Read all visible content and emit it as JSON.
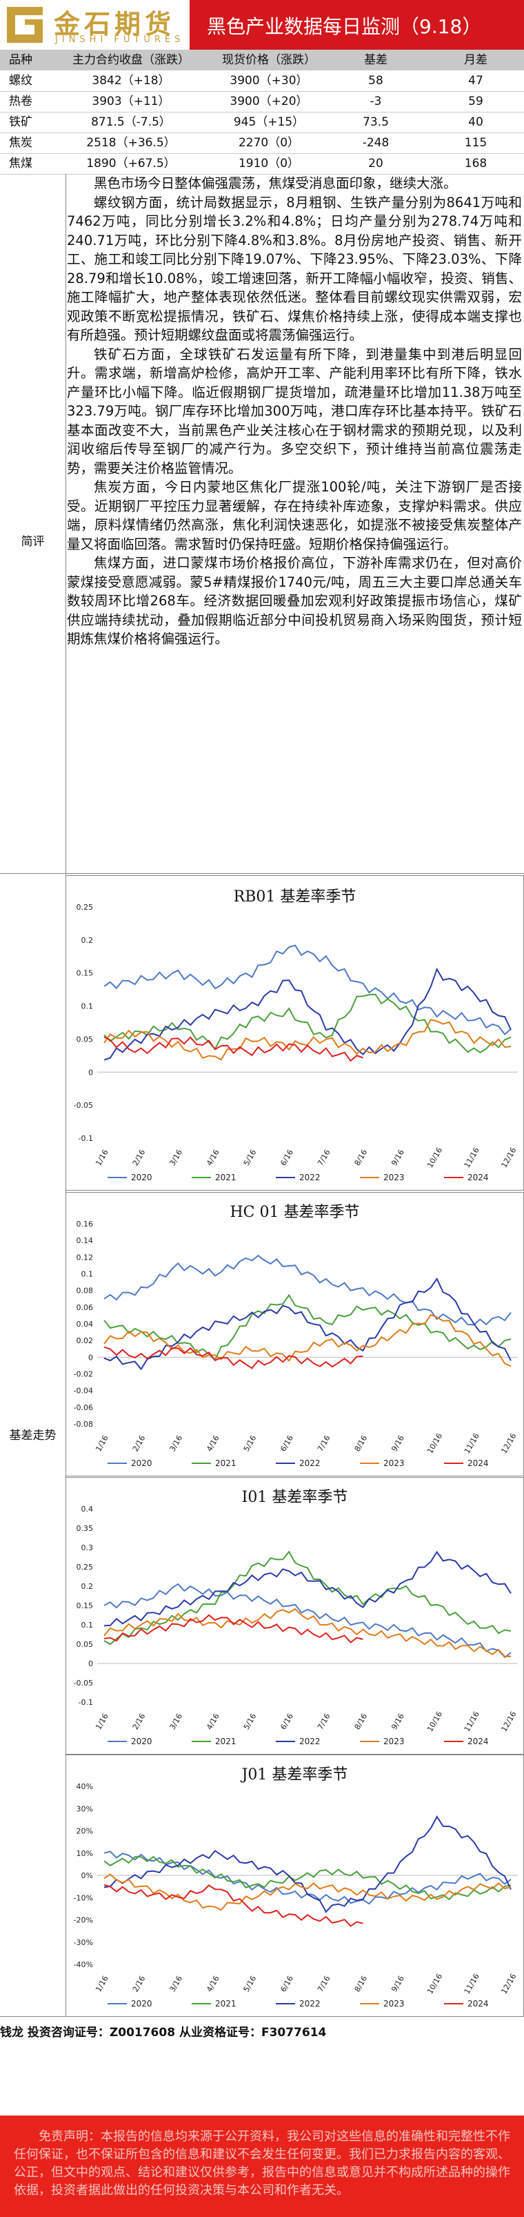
{
  "header": {
    "logo_cn": "金石期货",
    "logo_en": "JINSHI FUTURES",
    "title": "黑色产业数据每日监测（9.18）"
  },
  "table": {
    "columns": [
      "品种",
      "主力合约收盘（涨跌）",
      "现货价格（涨跌）",
      "基差",
      "月差"
    ],
    "rows": [
      [
        "螺纹",
        "3842（+18）",
        "3900（+30）",
        "58",
        "47"
      ],
      [
        "热卷",
        "3903（+11）",
        "3900（+20）",
        "-3",
        "59"
      ],
      [
        "铁矿",
        "871.5（-7.5）",
        "945（+15）",
        "73.5",
        "40"
      ],
      [
        "焦炭",
        "2518（+36.5）",
        "2270（0）",
        "-248",
        "115"
      ],
      [
        "焦煤",
        "1890（+67.5）",
        "1910（0）",
        "20",
        "168"
      ]
    ]
  },
  "comment": {
    "label": "简评",
    "paragraphs": [
      "黑色市场今日整体偏强震荡，焦煤受消息面印象，继续大涨。",
      "螺纹钢方面，统计局数据显示，8月粗钢、生铁产量分别为8641万吨和7462万吨，同比分别增长3.2%和4.8%；日均产量分别为278.74万吨和240.71万吨，环比分别下降4.8%和3.8%。8月份房地产投资、销售、新开工、施工和竣工同比分别下降19.07%、下降23.95%、下降23.03%、下降28.79和增长10.08%，竣工增速回落，新开工降幅小幅收窄，投资、销售、施工降幅扩大，地产整体表现依然低迷。整体看目前螺纹现实供需双弱，宏观政策不断宽松提振情况，铁矿石、煤焦价格持续上涨，使得成本端支撑也有所趋强。预计短期螺纹盘面或将震荡偏强运行。",
      "铁矿石方面，全球铁矿石发运量有所下降，到港量集中到港后明显回升。需求端，新增高炉检修，高炉开工率、产能利用率环比有所下降，铁水产量环比小幅下降。临近假期钢厂提货增加，疏港量环比增加11.38万吨至323.79万吨。钢厂库存环比增加300万吨，港口库存环比基本持平。铁矿石基本面改变不大，当前黑色产业关注核心在于钢材需求的预期兑现，以及利润收缩后传导至钢厂的减产行为。多空交织下，预计维持当前高位震荡走势，需要关注价格监管情况。",
      "焦炭方面，今日内蒙地区焦化厂提涨100轮/吨，关注下游钢厂是否接受。近期钢厂平控压力显著缓解，存在持续补库迹象，支撑炉料需求。供应端，原料煤情绪仍然高涨，焦化利润快速恶化，如提涨不被接受焦炭整体产量又将面临回落。需求暂时仍保持旺盛。短期价格保持偏强运行。",
      "焦煤方面，进口蒙煤市场价格报价高位，下游补库需求仍在，但对高价蒙煤接受意愿减弱。蒙5#精煤报价1740元/吨，周五三大主要口岸总通关车数较周环比增268车。经济数据回暖叠加宏观利好政策提振市场信心，煤矿供应端持续扰动，叠加假期临近部分中间投机贸易商入场采购囤货，预计短期炼焦煤价格将偏强运行。"
    ]
  },
  "basis": {
    "label": "基差走势"
  },
  "x_ticks": [
    "1/16",
    "2/16",
    "3/16",
    "4/16",
    "5/16",
    "6/16",
    "7/16",
    "8/16",
    "9/16",
    "10/16",
    "11/16",
    "12/16"
  ],
  "colors": {
    "2020": "#4e79c6",
    "2021": "#4aa03c",
    "2022": "#2b3aa8",
    "2023": "#e07b1a",
    "2024": "#e02020",
    "brand_red": "#d4161d",
    "gold": "#c8a03b"
  },
  "chart_data": [
    {
      "type": "line",
      "title": "RB01 基差率季节",
      "ylim": [
        -0.1,
        0.25
      ],
      "yticks": [
        "0.25",
        "0.2",
        "0.15",
        "0.1",
        "0.05",
        "0",
        "-0.05",
        "-0.1"
      ],
      "series": [
        {
          "name": "2020",
          "values": [
            0.13,
            0.14,
            0.15,
            0.13,
            0.15,
            0.19,
            0.17,
            0.13,
            0.11,
            0.09,
            0.08,
            0.06
          ]
        },
        {
          "name": "2021",
          "values": [
            0.05,
            0.06,
            0.07,
            0.04,
            0.08,
            0.09,
            0.05,
            0.12,
            0.1,
            0.06,
            0.03,
            0.05
          ]
        },
        {
          "name": "2022",
          "values": [
            0.02,
            0.05,
            0.07,
            0.09,
            0.1,
            0.14,
            0.07,
            0.03,
            0.04,
            0.15,
            0.12,
            0.07
          ]
        },
        {
          "name": "2023",
          "values": [
            0.05,
            0.06,
            0.04,
            0.02,
            0.05,
            0.04,
            0.05,
            0.03,
            0.04,
            0.08,
            0.05,
            0.04
          ]
        },
        {
          "name": "2024",
          "values": [
            0.05,
            0.03,
            0.05,
            0.04,
            0.03,
            0.04,
            0.03,
            0.02
          ]
        }
      ]
    },
    {
      "type": "line",
      "title": "HC 01 基差率季节",
      "ylim": [
        -0.08,
        0.16
      ],
      "yticks": [
        "0.16",
        "0.14",
        "0.12",
        "0.1",
        "0.08",
        "0.06",
        "0.04",
        "0.02",
        "0",
        "-0.02",
        "-0.04",
        "-0.06",
        "-0.08"
      ],
      "series": [
        {
          "name": "2020",
          "values": [
            0.07,
            0.08,
            0.11,
            0.1,
            0.12,
            0.11,
            0.09,
            0.08,
            0.07,
            0.05,
            0.04,
            0.05
          ]
        },
        {
          "name": "2021",
          "values": [
            0.04,
            0.03,
            0.02,
            0.0,
            0.05,
            0.07,
            0.04,
            0.06,
            0.05,
            0.03,
            0.01,
            0.02
          ]
        },
        {
          "name": "2022",
          "values": [
            0.0,
            -0.01,
            0.02,
            0.04,
            0.05,
            0.06,
            0.03,
            0.01,
            0.06,
            0.09,
            0.04,
            0.0
          ]
        },
        {
          "name": "2023",
          "values": [
            0.02,
            0.03,
            0.01,
            0.0,
            0.01,
            0.0,
            0.02,
            0.01,
            0.03,
            0.05,
            0.02,
            -0.01
          ]
        },
        {
          "name": "2024",
          "values": [
            0.01,
            0.0,
            0.01,
            0.0,
            -0.01,
            0.0,
            -0.01,
            0.0
          ]
        }
      ]
    },
    {
      "type": "line",
      "title": "I01 基差率季节",
      "ylim": [
        -0.1,
        0.4
      ],
      "yticks": [
        "0.4",
        "0.35",
        "0.3",
        "0.25",
        "0.2",
        "0.15",
        "0.1",
        "0.05",
        "0",
        "-0.05",
        "-0.1"
      ],
      "series": [
        {
          "name": "2020",
          "values": [
            0.15,
            0.16,
            0.2,
            0.18,
            0.17,
            0.15,
            0.12,
            0.1,
            0.09,
            0.07,
            0.05,
            0.02
          ]
        },
        {
          "name": "2021",
          "values": [
            0.05,
            0.09,
            0.12,
            0.16,
            0.25,
            0.28,
            0.2,
            0.16,
            0.2,
            0.15,
            0.1,
            0.08
          ]
        },
        {
          "name": "2022",
          "values": [
            0.1,
            0.12,
            0.15,
            0.18,
            0.22,
            0.24,
            0.2,
            0.15,
            0.2,
            0.28,
            0.24,
            0.19
          ]
        },
        {
          "name": "2023",
          "values": [
            0.08,
            0.1,
            0.12,
            0.1,
            0.11,
            0.14,
            0.1,
            0.08,
            0.07,
            0.05,
            0.04,
            0.02
          ]
        },
        {
          "name": "2024",
          "values": [
            0.06,
            0.08,
            0.1,
            0.12,
            0.1,
            0.09,
            0.07,
            0.06
          ]
        }
      ]
    },
    {
      "type": "line",
      "title": "J01 基差率季节",
      "ylim": [
        -0.4,
        0.4
      ],
      "yticks": [
        "40%",
        "30%",
        "20%",
        "10%",
        "0%",
        "-10%",
        "-20%",
        "-30%",
        "-40%"
      ],
      "series": [
        {
          "name": "2020",
          "values": [
            0.1,
            0.08,
            0.05,
            0.0,
            -0.05,
            -0.08,
            -0.1,
            -0.12,
            -0.08,
            -0.05,
            0.0,
            -0.03
          ]
        },
        {
          "name": "2021",
          "values": [
            0.05,
            0.08,
            0.05,
            0.0,
            -0.05,
            -0.02,
            0.02,
            0.0,
            -0.05,
            -0.1,
            -0.08,
            -0.05
          ]
        },
        {
          "name": "2022",
          "values": [
            -0.05,
            0.0,
            0.05,
            0.1,
            0.05,
            0.0,
            -0.15,
            -0.1,
            0.05,
            0.25,
            0.15,
            -0.05
          ]
        },
        {
          "name": "2023",
          "values": [
            0.0,
            -0.05,
            -0.1,
            -0.15,
            -0.1,
            -0.05,
            -0.05,
            -0.08,
            -0.1,
            -0.1,
            -0.05,
            -0.05
          ]
        },
        {
          "name": "2024",
          "values": [
            -0.05,
            -0.08,
            -0.1,
            -0.05,
            -0.15,
            -0.18,
            -0.2,
            -0.22
          ]
        }
      ]
    }
  ],
  "footer": {
    "analyst": "钱龙  投资咨询证号：Z0017608  从业资格证号：F3077614",
    "disclaimer": "免责声明：本报告的信息均来源于公开资料，我公司对这些信息的准确性和完整性不作任何保证，也不保证所包含的信息和建议不会发生任何变更。我们已力求报告内容的客观、公正，但文中的观点、结论和建议仅供参考，报告中的信息或意见并不构成所述品种的操作依据，投资者据此做出的任何投资决策与本公司和作者无关。"
  }
}
